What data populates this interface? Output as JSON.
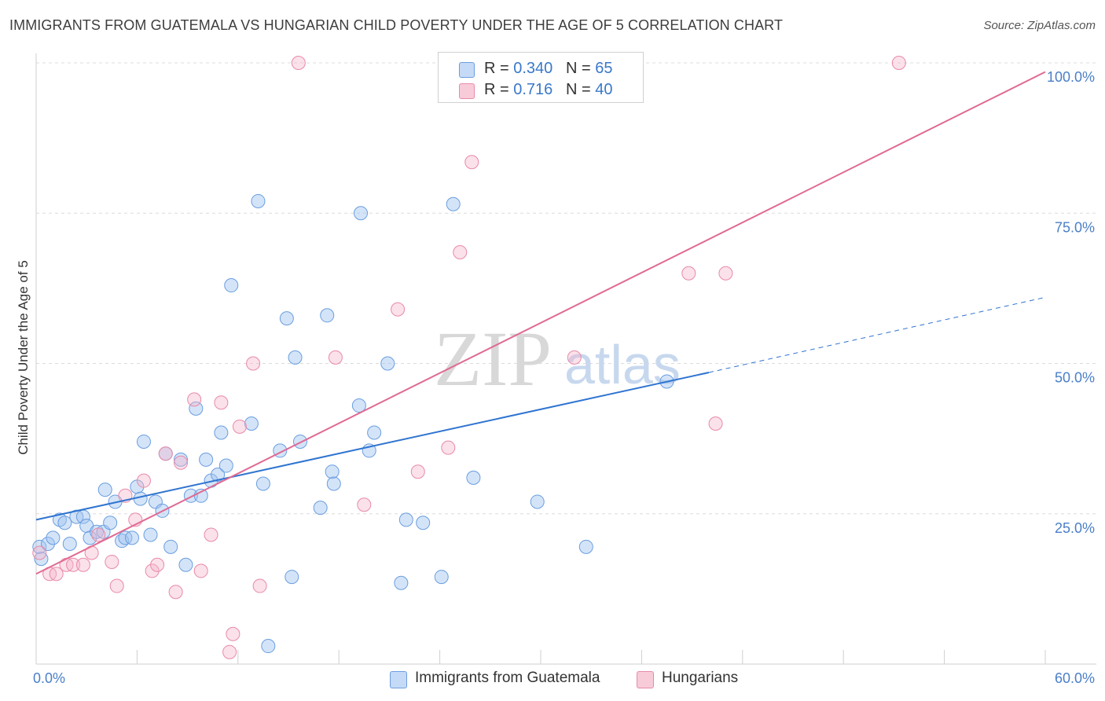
{
  "title": "IMMIGRANTS FROM GUATEMALA VS HUNGARIAN CHILD POVERTY UNDER THE AGE OF 5 CORRELATION CHART",
  "source": "Source: ZipAtlas.com",
  "watermark": {
    "zip": "ZIP",
    "atlas": "atlas"
  },
  "legend": {
    "r_label": "R =",
    "n_label": "N =",
    "rows": [
      {
        "r": "0.340",
        "n": "65"
      },
      {
        "r": "0.716",
        "n": "40"
      }
    ]
  },
  "chart_data": {
    "type": "scatter",
    "title": "IMMIGRANTS FROM GUATEMALA VS HUNGARIAN CHILD POVERTY UNDER THE AGE OF 5 CORRELATION CHART",
    "xlabel": "",
    "ylabel": "Child Poverty Under the Age of 5",
    "xlim": [
      0,
      60
    ],
    "ylim": [
      0,
      100
    ],
    "x_tick_labels": [
      "0.0%",
      "60.0%"
    ],
    "y_ticks": [
      25,
      50,
      75,
      100
    ],
    "y_tick_labels": [
      "25.0%",
      "50.0%",
      "75.0%",
      "100.0%"
    ],
    "grid": true,
    "legend_position": "top-center",
    "colors": {
      "guatemala": "#6a9ee0",
      "hungarians": "#e88aa8",
      "guatemala_line": "#2f74d0",
      "hungarians_line": "#e06a93"
    },
    "series": [
      {
        "name": "Immigrants from Guatemala",
        "points": [
          [
            0.2,
            19.5
          ],
          [
            0.3,
            17.5
          ],
          [
            0.7,
            20.0
          ],
          [
            1.0,
            21.0
          ],
          [
            1.4,
            24.0
          ],
          [
            1.7,
            23.5
          ],
          [
            2.0,
            20.0
          ],
          [
            2.4,
            24.5
          ],
          [
            2.8,
            24.5
          ],
          [
            3.0,
            23.0
          ],
          [
            3.2,
            21.0
          ],
          [
            3.6,
            22.0
          ],
          [
            4.0,
            22.0
          ],
          [
            4.1,
            29.0
          ],
          [
            4.4,
            23.5
          ],
          [
            4.7,
            27.0
          ],
          [
            5.1,
            20.5
          ],
          [
            5.3,
            21.0
          ],
          [
            5.7,
            21.0
          ],
          [
            6.0,
            29.5
          ],
          [
            6.2,
            27.5
          ],
          [
            6.4,
            37.0
          ],
          [
            6.8,
            21.5
          ],
          [
            7.1,
            27.0
          ],
          [
            7.5,
            25.5
          ],
          [
            7.7,
            35.0
          ],
          [
            8.0,
            19.5
          ],
          [
            8.6,
            34.0
          ],
          [
            8.9,
            16.5
          ],
          [
            9.2,
            28.0
          ],
          [
            9.5,
            42.5
          ],
          [
            9.8,
            28.0
          ],
          [
            10.1,
            34.0
          ],
          [
            10.4,
            30.5
          ],
          [
            10.8,
            31.5
          ],
          [
            11.0,
            38.5
          ],
          [
            11.3,
            33.0
          ],
          [
            11.6,
            63.0
          ],
          [
            12.8,
            40.0
          ],
          [
            13.2,
            77.0
          ],
          [
            13.5,
            30.0
          ],
          [
            13.8,
            3.0
          ],
          [
            14.5,
            35.5
          ],
          [
            14.9,
            57.5
          ],
          [
            15.2,
            14.5
          ],
          [
            15.4,
            51.0
          ],
          [
            15.7,
            37.0
          ],
          [
            16.9,
            26.0
          ],
          [
            17.3,
            58.0
          ],
          [
            17.6,
            32.0
          ],
          [
            17.7,
            30.0
          ],
          [
            19.2,
            43.0
          ],
          [
            19.8,
            35.5
          ],
          [
            20.1,
            38.5
          ],
          [
            20.9,
            50.0
          ],
          [
            19.3,
            75.0
          ],
          [
            21.7,
            13.5
          ],
          [
            22.0,
            24.0
          ],
          [
            23.0,
            23.5
          ],
          [
            24.1,
            14.5
          ],
          [
            24.8,
            76.5
          ],
          [
            26.0,
            31.0
          ],
          [
            29.8,
            27.0
          ],
          [
            32.7,
            19.5
          ],
          [
            37.5,
            47.0
          ]
        ]
      },
      {
        "name": "Hungarians",
        "points": [
          [
            0.2,
            18.5
          ],
          [
            0.8,
            15.0
          ],
          [
            1.2,
            15.0
          ],
          [
            1.8,
            16.5
          ],
          [
            2.2,
            16.5
          ],
          [
            2.8,
            16.5
          ],
          [
            3.3,
            18.5
          ],
          [
            3.7,
            21.5
          ],
          [
            4.5,
            17.0
          ],
          [
            4.8,
            13.0
          ],
          [
            5.3,
            28.0
          ],
          [
            5.9,
            24.0
          ],
          [
            6.4,
            30.5
          ],
          [
            6.9,
            15.5
          ],
          [
            7.2,
            16.5
          ],
          [
            7.7,
            35.0
          ],
          [
            8.3,
            12.0
          ],
          [
            8.6,
            33.5
          ],
          [
            9.4,
            44.0
          ],
          [
            9.8,
            15.5
          ],
          [
            10.4,
            21.5
          ],
          [
            11.0,
            43.5
          ],
          [
            11.5,
            2.0
          ],
          [
            11.7,
            5.0
          ],
          [
            12.1,
            39.5
          ],
          [
            12.9,
            50.0
          ],
          [
            13.3,
            13.0
          ],
          [
            15.6,
            100.0
          ],
          [
            17.8,
            51.0
          ],
          [
            19.5,
            26.5
          ],
          [
            21.5,
            59.0
          ],
          [
            22.7,
            32.0
          ],
          [
            24.5,
            36.0
          ],
          [
            25.2,
            68.5
          ],
          [
            25.9,
            83.5
          ],
          [
            32.0,
            51.0
          ],
          [
            38.8,
            65.0
          ],
          [
            40.4,
            40.0
          ],
          [
            41.0,
            65.0
          ],
          [
            51.3,
            100.0
          ]
        ]
      }
    ],
    "trend_lines": [
      {
        "series": "Immigrants from Guatemala",
        "x": [
          0,
          40
        ],
        "y": [
          24.0,
          48.5
        ],
        "dashed_extension_to_x": 60,
        "dashed_extension_y": 61.0
      },
      {
        "series": "Hungarians",
        "x": [
          0,
          60
        ],
        "y": [
          15.0,
          98.5
        ]
      }
    ]
  },
  "bottom_legend": [
    "Immigrants from Guatemala",
    "Hungarians"
  ]
}
